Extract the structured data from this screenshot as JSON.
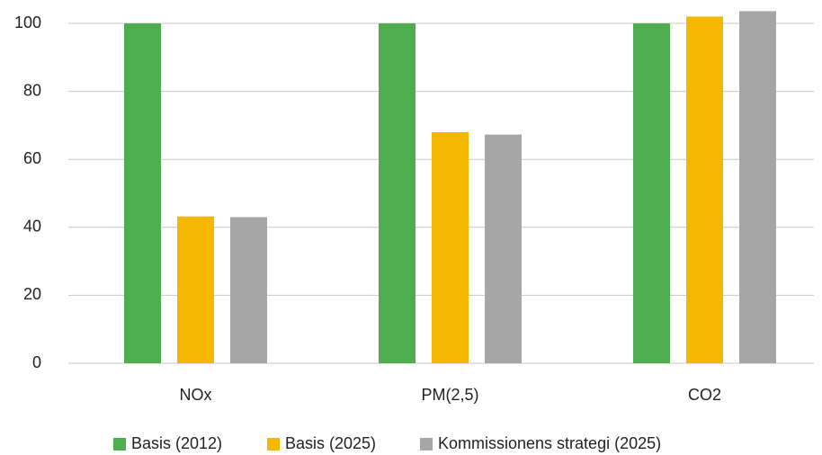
{
  "chart_data": {
    "type": "bar",
    "categories": [
      "NOx",
      "PM(2,5)",
      "CO2"
    ],
    "series": [
      {
        "name": "Basis (2012)",
        "color": "#4eae4e",
        "values": [
          100,
          100,
          100
        ]
      },
      {
        "name": "Basis (2025)",
        "color": "#f5b800",
        "values": [
          43.2,
          68,
          102
        ]
      },
      {
        "name": "Kommissionens strategi (2025)",
        "color": "#a6a6a6",
        "values": [
          43,
          67.3,
          103.6
        ]
      }
    ],
    "ylim": [
      0,
      100
    ],
    "yticks": [
      0,
      20,
      40,
      60,
      80,
      100
    ],
    "grid": true,
    "legend": "bottom"
  }
}
